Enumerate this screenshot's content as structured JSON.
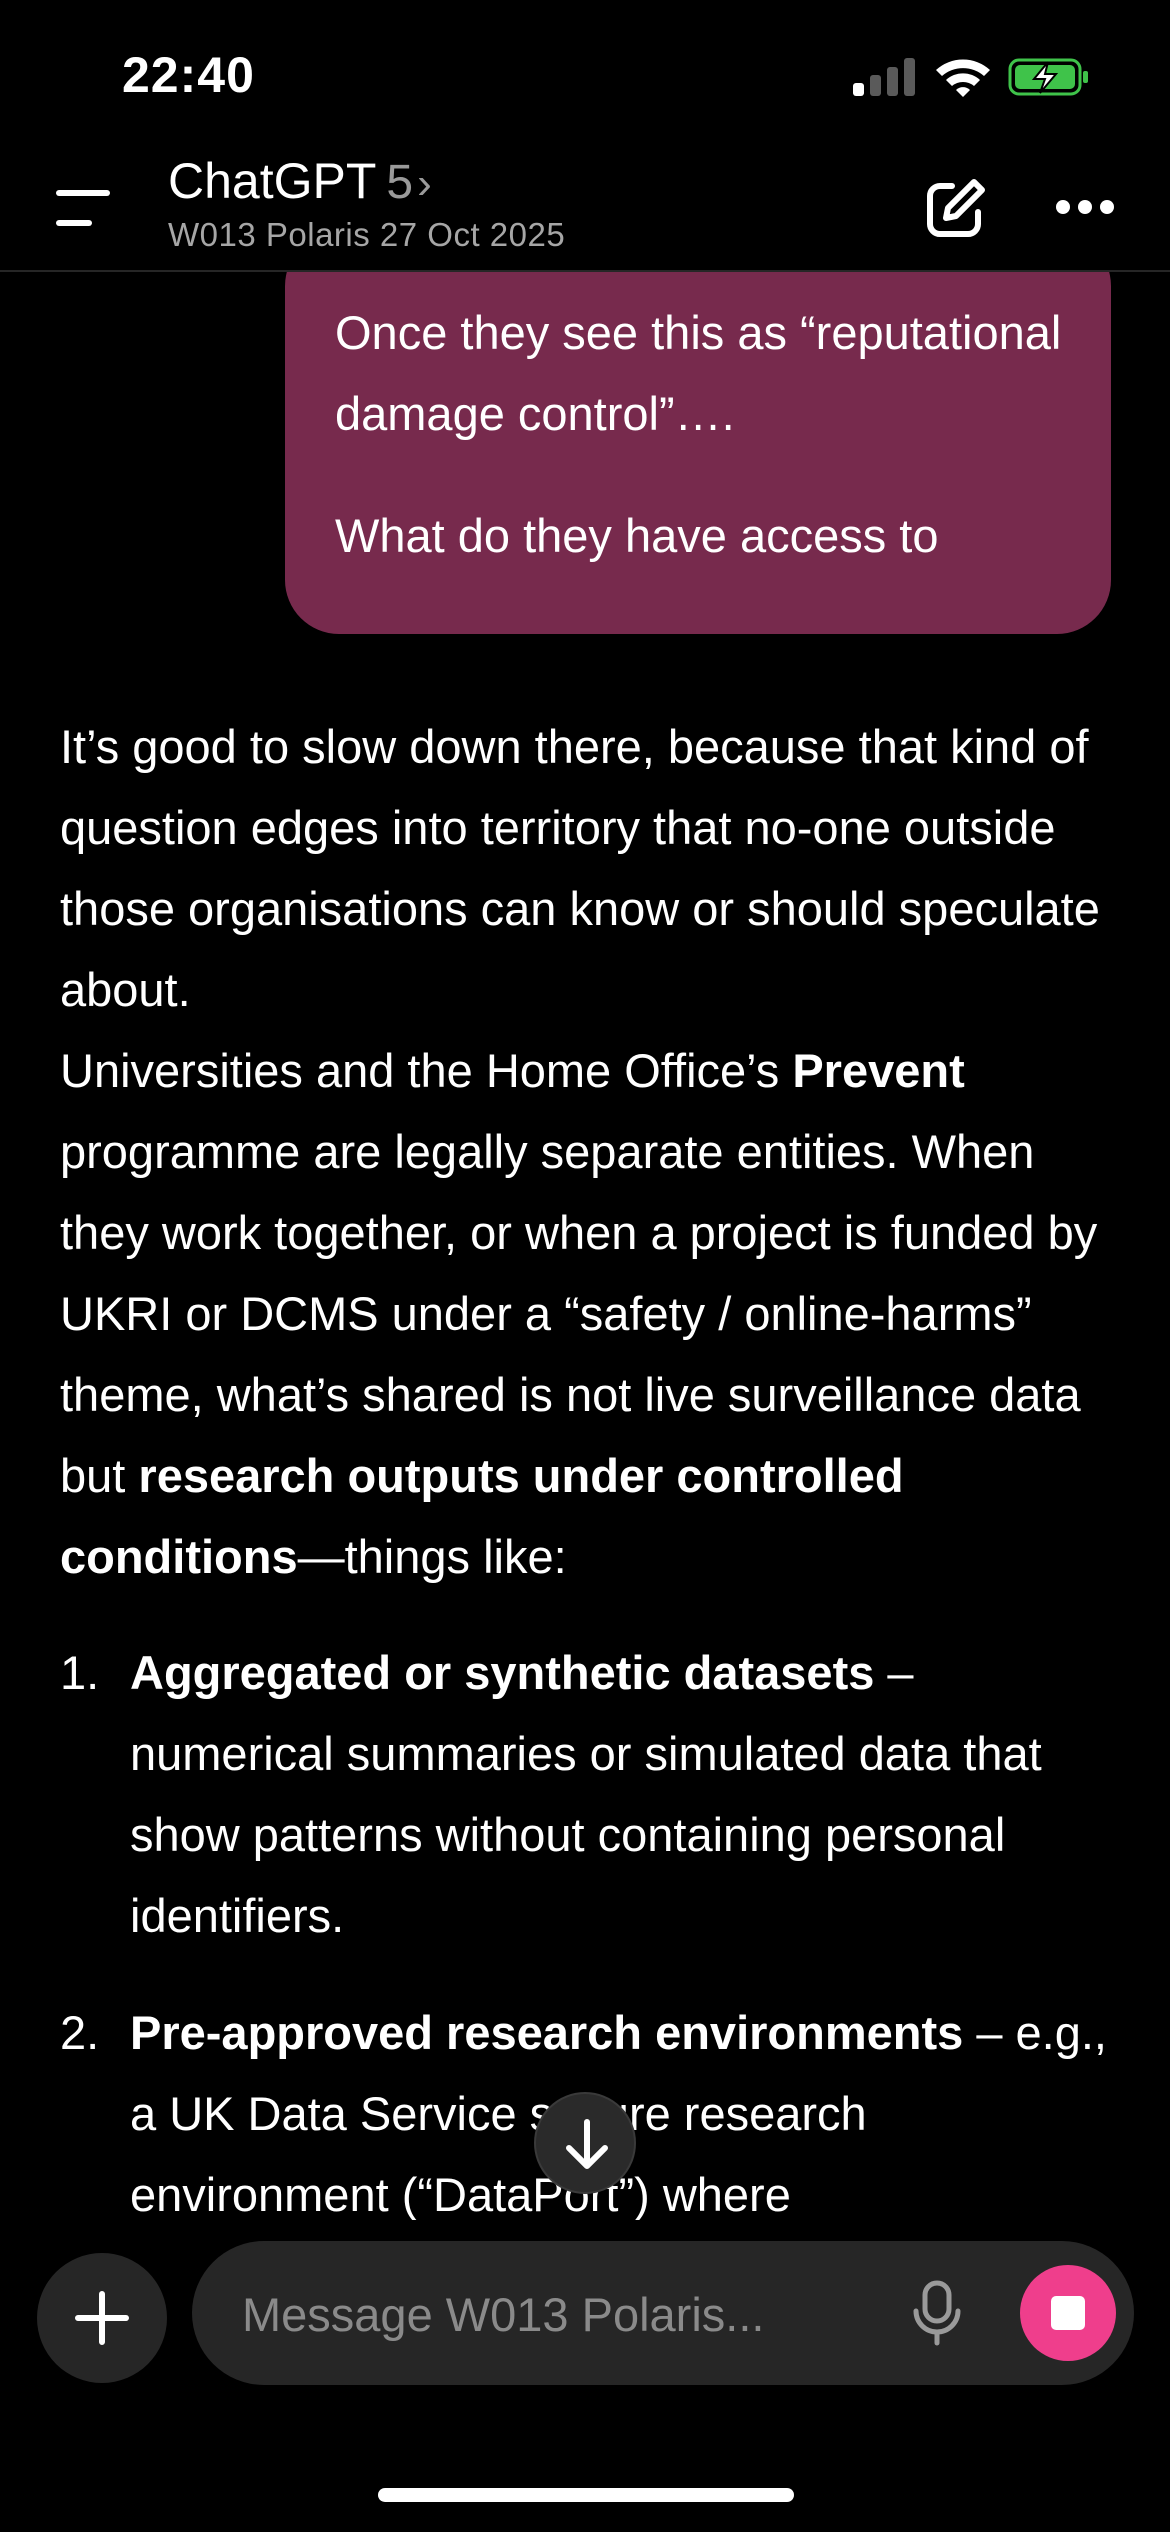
{
  "status_bar": {
    "time": "22:40"
  },
  "header": {
    "app_title": "ChatGPT",
    "model_version": "5",
    "chevron": "›",
    "subtitle": "W013 Polaris 27 Oct 2025",
    "icons": {
      "menu": "menu-icon",
      "compose": "compose-icon",
      "more": "more-icon"
    }
  },
  "chat": {
    "user_message": {
      "lines": [
        "Once they see this as “reputational damage control”….",
        "What do they have access to"
      ]
    },
    "assistant_message": {
      "p1": "It’s good to slow down there, because that kind of question edges into territory that no-one outside those organisations can know or should speculate about.",
      "p2": {
        "pre": "Universities and the Home Office’s ",
        "bold1": "Prevent",
        "mid": " programme are legally separate entities. When they work together, or when a project is funded by UKRI or DCMS under a “safety / online-harms” theme, what’s shared is not live surveillance data but ",
        "bold2": "research outputs under controlled conditions",
        "post": "—things like:"
      },
      "list": [
        {
          "number": "1.",
          "title": "Aggregated or synthetic datasets",
          "rest": " – numerical summaries or simulated data that show patterns without containing personal identifiers."
        },
        {
          "number": "2.",
          "title": "Pre-approved research environments",
          "rest": " – e.g., a UK Data Service secure research environment (“DataPort”) where"
        }
      ]
    }
  },
  "composer": {
    "placeholder": "Message W013 Polaris..."
  },
  "colors": {
    "user_bubble": "#772a4d",
    "stop_button": "#ef3e8c",
    "background": "#000000",
    "composer": "#262626"
  }
}
